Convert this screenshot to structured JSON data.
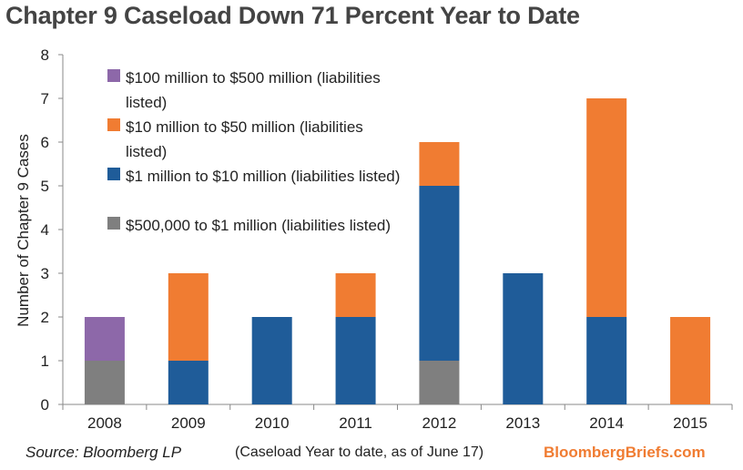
{
  "title": "Chapter 9 Caseload Down 71 Percent Year to Date",
  "footer": {
    "source": "Source: Bloomberg LP",
    "note": "(Caseload Year to date, as of June 17)",
    "brand": "BloombergBriefs.com"
  },
  "colors": {
    "purple": "#8d68a9",
    "orange": "#f07c32",
    "blue": "#1f5c99",
    "gray": "#7f7f7f"
  },
  "chart_data": {
    "type": "bar",
    "stacked": true,
    "title": "Chapter 9 Caseload Down 71 Percent Year to Date",
    "xlabel": "",
    "ylabel": "Number of Chapter 9 Cases",
    "ylim": [
      0,
      8
    ],
    "yticks": [
      "0",
      "1",
      "2",
      "3",
      "4",
      "5",
      "6",
      "7",
      "8"
    ],
    "categories": [
      "2008",
      "2009",
      "2010",
      "2011",
      "2012",
      "2013",
      "2014",
      "2015"
    ],
    "series": [
      {
        "name": "$500,000 to $1 million (liabilities listed)",
        "color": "#7f7f7f",
        "values": [
          1,
          0,
          0,
          0,
          1,
          0,
          0,
          0
        ]
      },
      {
        "name": "$1 million to $10 million (liabilities listed)",
        "color": "#1f5c99",
        "values": [
          0,
          1,
          2,
          2,
          4,
          3,
          2,
          0
        ]
      },
      {
        "name": "$10 million to $50 million (liabilities listed)",
        "color": "#f07c32",
        "values": [
          0,
          2,
          0,
          1,
          1,
          0,
          5,
          2
        ]
      },
      {
        "name": "$100 million to $500 million (liabilities listed)",
        "color": "#8d68a9",
        "values": [
          1,
          0,
          0,
          0,
          0,
          0,
          0,
          0
        ]
      }
    ],
    "legend": {
      "position": "top-left",
      "items": [
        {
          "text": "$100 million to $500 million (liabilities listed)",
          "color": "#8d68a9"
        },
        {
          "text": "$10 million to $50 million (liabilities listed)",
          "color": "#f07c32"
        },
        {
          "text": "$1 million to $10 million (liabilities listed)",
          "color": "#1f5c99"
        },
        {
          "text": "$500,000 to $1 million (liabilities listed)",
          "color": "#7f7f7f"
        }
      ]
    },
    "grid": false
  }
}
